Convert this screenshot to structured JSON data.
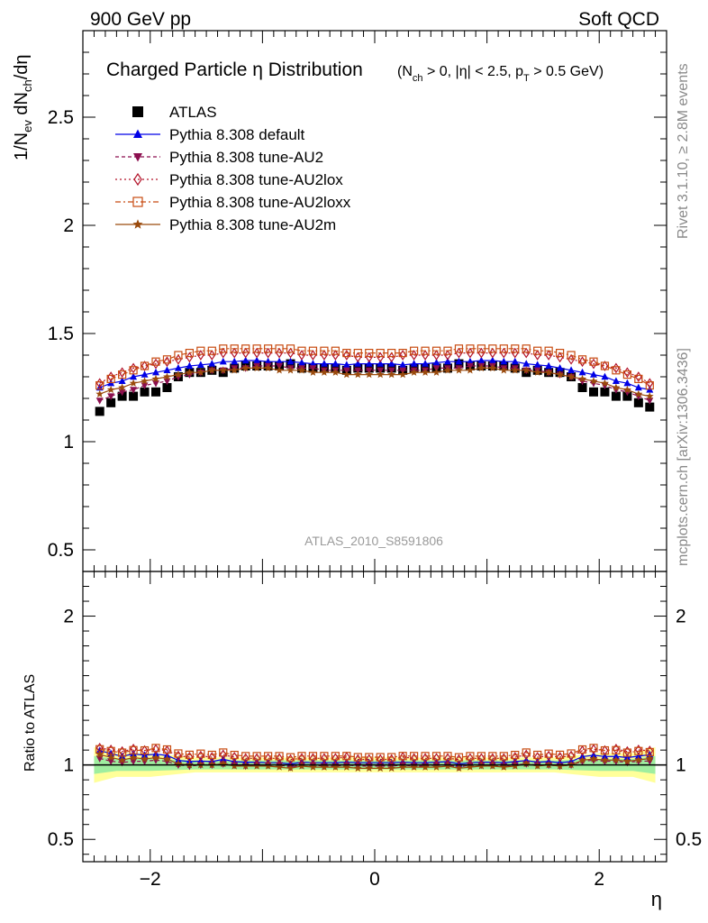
{
  "header": {
    "left": "900 GeV pp",
    "right": "Soft QCD"
  },
  "side_labels": {
    "rivet": "Rivet 3.1.10, ≥ 2.8M events",
    "mcplots": "mcplots.cern.ch [arXiv:1306.3436]"
  },
  "analysis_tag": "ATLAS_2010_S8591806",
  "chart_data": [
    {
      "type": "scatter",
      "panel": "main",
      "title": "Charged Particle η Distribution",
      "title_cuts": {
        "nch": "(N",
        "nch_sub": "ch",
        "rest1": " > 0, |η| < 2.5, p",
        "pt_sub": "T",
        "rest2": " > 0.5 GeV)"
      },
      "ylabel": "1/N_ev dN_ch/dη",
      "xlabel": "η",
      "xlim": [
        -2.6,
        2.6
      ],
      "ylim": [
        0.4,
        2.9
      ],
      "yticks": [
        "0.5",
        "1",
        "1.5",
        "2",
        "2.5"
      ],
      "legend_position": "top-left",
      "x": [
        -2.45,
        -2.35,
        -2.25,
        -2.15,
        -2.05,
        -1.95,
        -1.85,
        -1.75,
        -1.65,
        -1.55,
        -1.45,
        -1.35,
        -1.25,
        -1.15,
        -1.05,
        -0.95,
        -0.85,
        -0.75,
        -0.65,
        -0.55,
        -0.45,
        -0.35,
        -0.25,
        -0.15,
        -0.05,
        0.05,
        0.15,
        0.25,
        0.35,
        0.45,
        0.55,
        0.65,
        0.75,
        0.85,
        0.95,
        1.05,
        1.15,
        1.25,
        1.35,
        1.45,
        1.55,
        1.65,
        1.75,
        1.85,
        1.95,
        2.05,
        2.15,
        2.25,
        2.35,
        2.45
      ],
      "series": [
        {
          "name": "ATLAS",
          "marker": "square",
          "color": "#000000",
          "values": [
            1.14,
            1.18,
            1.21,
            1.21,
            1.23,
            1.23,
            1.25,
            1.3,
            1.32,
            1.32,
            1.33,
            1.32,
            1.34,
            1.35,
            1.35,
            1.35,
            1.35,
            1.36,
            1.34,
            1.34,
            1.34,
            1.34,
            1.33,
            1.34,
            1.34,
            1.34,
            1.34,
            1.33,
            1.34,
            1.34,
            1.34,
            1.34,
            1.36,
            1.35,
            1.35,
            1.35,
            1.35,
            1.34,
            1.32,
            1.33,
            1.32,
            1.32,
            1.3,
            1.25,
            1.23,
            1.23,
            1.21,
            1.21,
            1.18,
            1.16
          ]
        },
        {
          "name": "Pythia 8.308 default",
          "marker": "triangle",
          "color": "#0000e6",
          "values": [
            1.25,
            1.27,
            1.28,
            1.3,
            1.31,
            1.32,
            1.33,
            1.34,
            1.35,
            1.355,
            1.36,
            1.37,
            1.37,
            1.375,
            1.375,
            1.37,
            1.37,
            1.37,
            1.365,
            1.36,
            1.36,
            1.36,
            1.355,
            1.36,
            1.36,
            1.36,
            1.36,
            1.355,
            1.36,
            1.36,
            1.365,
            1.37,
            1.37,
            1.37,
            1.375,
            1.375,
            1.37,
            1.37,
            1.36,
            1.355,
            1.35,
            1.34,
            1.33,
            1.32,
            1.31,
            1.3,
            1.28,
            1.27,
            1.25,
            1.24
          ]
        },
        {
          "name": "Pythia 8.308 tune-AU2",
          "marker": "triangle-down",
          "color": "#8c0f4f",
          "values": [
            1.19,
            1.21,
            1.23,
            1.24,
            1.26,
            1.27,
            1.28,
            1.3,
            1.31,
            1.32,
            1.33,
            1.33,
            1.34,
            1.34,
            1.35,
            1.35,
            1.35,
            1.34,
            1.34,
            1.34,
            1.33,
            1.33,
            1.33,
            1.33,
            1.33,
            1.33,
            1.33,
            1.33,
            1.33,
            1.33,
            1.34,
            1.34,
            1.34,
            1.35,
            1.35,
            1.35,
            1.34,
            1.34,
            1.33,
            1.33,
            1.32,
            1.31,
            1.3,
            1.28,
            1.27,
            1.26,
            1.24,
            1.23,
            1.21,
            1.19
          ]
        },
        {
          "name": "Pythia 8.308 tune-AU2lox",
          "marker": "diamond-open",
          "color": "#b3142a",
          "values": [
            1.27,
            1.3,
            1.32,
            1.34,
            1.35,
            1.36,
            1.37,
            1.38,
            1.39,
            1.4,
            1.4,
            1.41,
            1.41,
            1.41,
            1.41,
            1.41,
            1.41,
            1.41,
            1.4,
            1.4,
            1.4,
            1.4,
            1.4,
            1.39,
            1.39,
            1.39,
            1.39,
            1.4,
            1.4,
            1.4,
            1.4,
            1.4,
            1.41,
            1.41,
            1.41,
            1.41,
            1.41,
            1.41,
            1.41,
            1.4,
            1.4,
            1.39,
            1.38,
            1.37,
            1.36,
            1.35,
            1.34,
            1.32,
            1.3,
            1.27
          ]
        },
        {
          "name": "Pythia 8.308 tune-AU2loxx",
          "marker": "square-open",
          "color": "#c84b10",
          "values": [
            1.26,
            1.29,
            1.31,
            1.33,
            1.35,
            1.37,
            1.38,
            1.4,
            1.41,
            1.42,
            1.42,
            1.43,
            1.43,
            1.43,
            1.43,
            1.43,
            1.43,
            1.43,
            1.42,
            1.42,
            1.42,
            1.42,
            1.41,
            1.41,
            1.41,
            1.41,
            1.41,
            1.41,
            1.42,
            1.42,
            1.42,
            1.42,
            1.43,
            1.43,
            1.43,
            1.43,
            1.43,
            1.43,
            1.43,
            1.42,
            1.42,
            1.41,
            1.4,
            1.38,
            1.37,
            1.35,
            1.33,
            1.31,
            1.29,
            1.26
          ]
        },
        {
          "name": "Pythia 8.308 tune-AU2m",
          "marker": "star",
          "color": "#9a4a0c",
          "values": [
            1.22,
            1.24,
            1.25,
            1.27,
            1.28,
            1.29,
            1.3,
            1.31,
            1.32,
            1.32,
            1.33,
            1.33,
            1.33,
            1.34,
            1.34,
            1.34,
            1.33,
            1.33,
            1.33,
            1.32,
            1.32,
            1.32,
            1.31,
            1.31,
            1.31,
            1.31,
            1.31,
            1.31,
            1.32,
            1.32,
            1.32,
            1.33,
            1.33,
            1.33,
            1.34,
            1.34,
            1.33,
            1.33,
            1.33,
            1.32,
            1.32,
            1.31,
            1.3,
            1.29,
            1.28,
            1.27,
            1.25,
            1.24,
            1.22,
            1.21
          ]
        }
      ]
    },
    {
      "type": "scatter",
      "panel": "ratio",
      "ylabel": "Ratio to ATLAS",
      "xlabel": "η",
      "xlim": [
        -2.6,
        2.6
      ],
      "ylim": [
        0.35,
        2.3
      ],
      "yticks": [
        "0.5",
        "1",
        "2"
      ],
      "xticks": [
        "−2",
        "0",
        "2"
      ],
      "bands": {
        "inner_color": "#9fee9f",
        "outer_color": "#ffff99",
        "outer_edges": [
          [
            -2.5,
            0.88
          ],
          [
            -2.3,
            0.92
          ],
          [
            -2.0,
            0.92
          ],
          [
            -1.6,
            0.95
          ],
          [
            1.6,
            0.95
          ],
          [
            2.0,
            0.92
          ],
          [
            2.3,
            0.92
          ],
          [
            2.5,
            0.88
          ]
        ],
        "inner_edges": [
          [
            -2.5,
            0.94
          ],
          [
            -2.3,
            0.96
          ],
          [
            -2.0,
            0.96
          ],
          [
            -1.6,
            0.97
          ],
          [
            1.6,
            0.97
          ],
          [
            2.0,
            0.96
          ],
          [
            2.3,
            0.96
          ],
          [
            2.5,
            0.94
          ]
        ]
      }
    }
  ]
}
